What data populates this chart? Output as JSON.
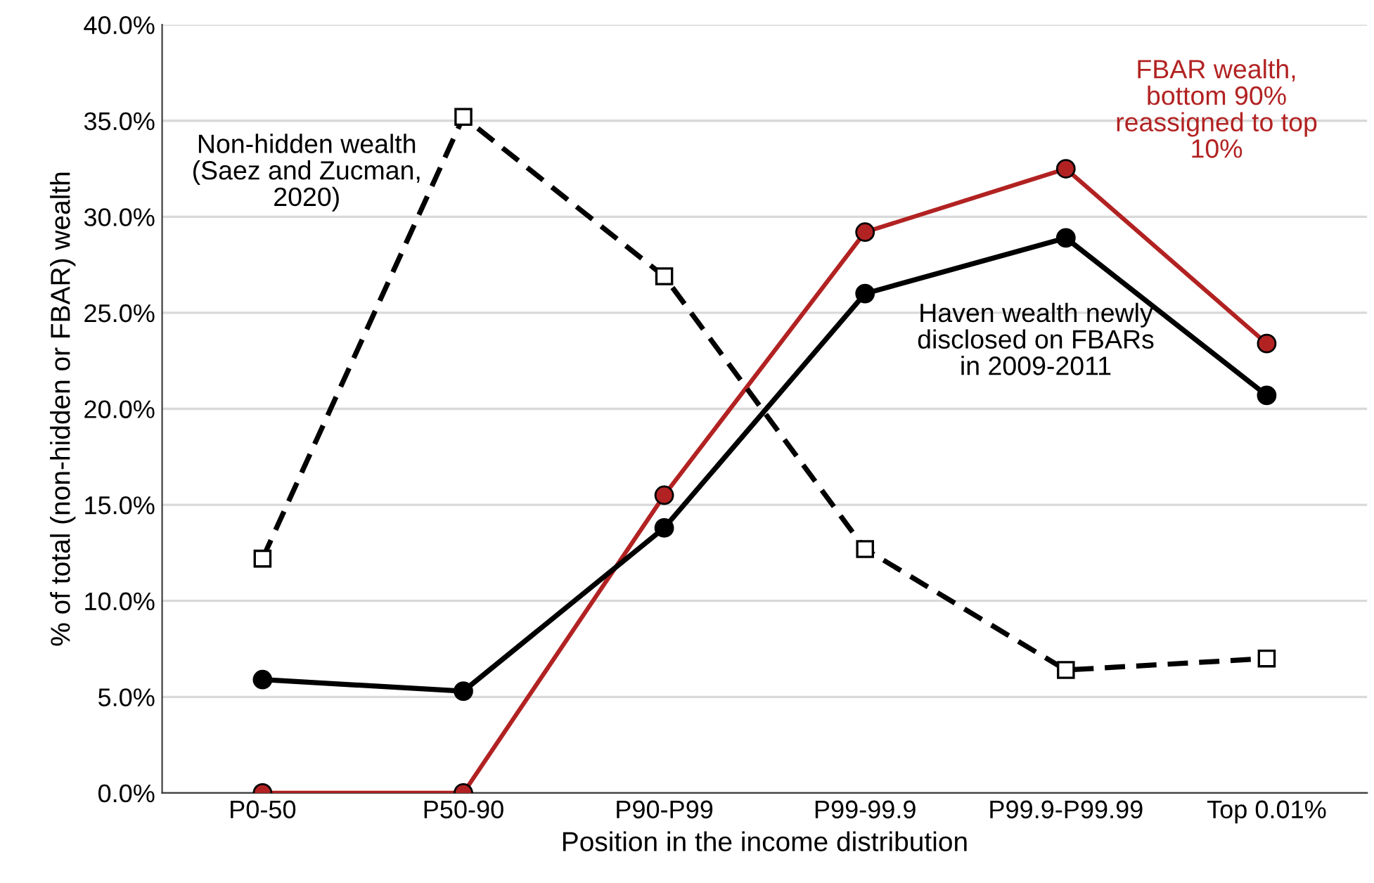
{
  "chart_data": {
    "type": "line",
    "xlabel": "Position in the income distribution",
    "ylabel": "% of total (non-hidden or FBAR) wealth",
    "categories": [
      "P0-50",
      "P50-90",
      "P90-P99",
      "P99-99.9",
      "P99.9-P99.99",
      "Top 0.01%"
    ],
    "series": [
      {
        "name": "Non-hidden wealth\n(Saez and Zucman,\n2020)",
        "color": "#000000",
        "marker": "square",
        "line_style": "dashed",
        "values": [
          12.2,
          35.2,
          26.9,
          12.7,
          6.4,
          7.0
        ]
      },
      {
        "name": "Haven wealth newly\ndisclosed on FBARs\nin 2009-2011",
        "color": "#000000",
        "marker": "circle",
        "line_style": "solid",
        "values": [
          5.9,
          5.3,
          13.8,
          26.0,
          28.9,
          20.7
        ]
      },
      {
        "name": "FBAR wealth,\nbottom 90%\nreassigned to top\n10%",
        "color": "#b22222",
        "marker": "circle",
        "line_style": "solid",
        "values": [
          0,
          0,
          15.5,
          29.2,
          32.5,
          23.4
        ]
      }
    ],
    "ylim": [
      0,
      40
    ],
    "yticks": [
      {
        "value": 0,
        "label": "0.0%"
      },
      {
        "value": 5,
        "label": "5.0%"
      },
      {
        "value": 10,
        "label": "10.0%"
      },
      {
        "value": 15,
        "label": "15.0%"
      },
      {
        "value": 20,
        "label": "20.0%"
      },
      {
        "value": 25,
        "label": "25.0%"
      },
      {
        "value": 30,
        "label": "30.0%"
      },
      {
        "value": 35,
        "label": "35.0%"
      },
      {
        "value": 40,
        "label": "40.0%"
      }
    ],
    "grid": "y",
    "legend": false
  }
}
